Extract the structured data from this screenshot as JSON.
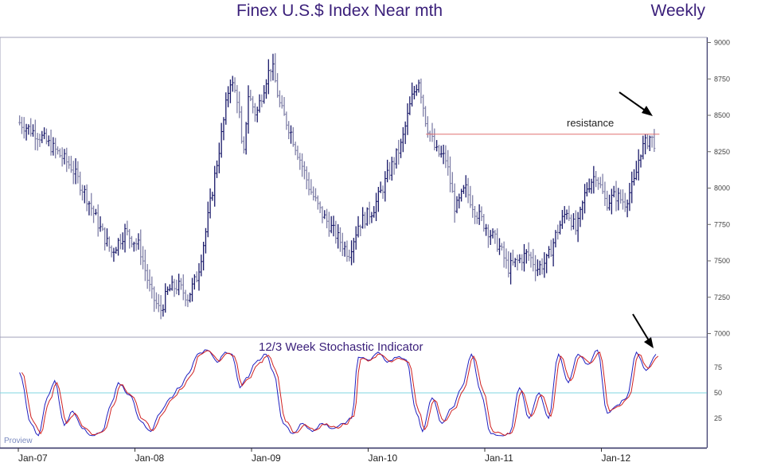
{
  "chart_data": [
    {
      "type": "ohlc",
      "title": "Finex U.S.$ Index Near mth",
      "period": "Weekly",
      "ylim": [
        6980,
        9020
      ],
      "yticks": [
        "9000",
        "8750",
        "8500",
        "8250",
        "8000",
        "7750",
        "7500",
        "7250",
        "7000"
      ],
      "x_labels": [
        "Jan-07",
        "Jan-08",
        "Jan-09",
        "Jan-10",
        "Jan-11",
        "Jan-12"
      ],
      "price_path": [
        [
          "2007-01-05",
          8450
        ],
        [
          "2007-03-15",
          8350
        ],
        [
          "2007-05-01",
          8250
        ],
        [
          "2007-06-15",
          8150
        ],
        [
          "2007-08-01",
          7950
        ],
        [
          "2007-09-15",
          7720
        ],
        [
          "2007-10-20",
          7560
        ],
        [
          "2007-12-01",
          7700
        ],
        [
          "2008-01-15",
          7600
        ],
        [
          "2008-02-20",
          7280
        ],
        [
          "2008-03-20",
          7150
        ],
        [
          "2008-04-15",
          7300
        ],
        [
          "2008-05-15",
          7330
        ],
        [
          "2008-06-15",
          7250
        ],
        [
          "2008-07-15",
          7400
        ],
        [
          "2008-08-10",
          7700
        ],
        [
          "2008-09-01",
          8000
        ],
        [
          "2008-10-01",
          8400
        ],
        [
          "2008-10-25",
          8750
        ],
        [
          "2008-11-20",
          8600
        ],
        [
          "2008-12-05",
          8150
        ],
        [
          "2008-12-20",
          8650
        ],
        [
          "2009-01-15",
          8500
        ],
        [
          "2009-02-15",
          8750
        ],
        [
          "2009-03-05",
          8850
        ],
        [
          "2009-04-01",
          8550
        ],
        [
          "2009-05-01",
          8400
        ],
        [
          "2009-06-01",
          8200
        ],
        [
          "2009-07-01",
          8000
        ],
        [
          "2009-08-01",
          7850
        ],
        [
          "2009-09-15",
          7700
        ],
        [
          "2009-11-01",
          7550
        ],
        [
          "2009-12-01",
          7750
        ],
        [
          "2010-01-15",
          7850
        ],
        [
          "2010-02-15",
          8000
        ],
        [
          "2010-03-15",
          8150
        ],
        [
          "2010-04-15",
          8300
        ],
        [
          "2010-05-15",
          8600
        ],
        [
          "2010-06-08",
          8750
        ],
        [
          "2010-07-01",
          8450
        ],
        [
          "2010-08-01",
          8250
        ],
        [
          "2010-09-01",
          8200
        ],
        [
          "2010-10-01",
          7850
        ],
        [
          "2010-11-01",
          8000
        ],
        [
          "2010-12-01",
          7850
        ],
        [
          "2011-01-15",
          7700
        ],
        [
          "2011-02-15",
          7600
        ],
        [
          "2011-03-15",
          7450
        ],
        [
          "2011-04-15",
          7500
        ],
        [
          "2011-05-15",
          7550
        ],
        [
          "2011-06-15",
          7450
        ],
        [
          "2011-07-15",
          7500
        ],
        [
          "2011-08-15",
          7700
        ],
        [
          "2011-09-15",
          7850
        ],
        [
          "2011-10-15",
          7700
        ],
        [
          "2011-11-15",
          8000
        ],
        [
          "2011-12-15",
          8100
        ],
        [
          "2012-01-15",
          7900
        ],
        [
          "2012-02-15",
          7950
        ],
        [
          "2012-03-15",
          7900
        ],
        [
          "2012-04-15",
          8050
        ],
        [
          "2012-05-01",
          8250
        ],
        [
          "2012-06-01",
          8350
        ],
        [
          "2012-06-20",
          8300
        ]
      ],
      "resistance": {
        "label": "resistance",
        "value": 8370,
        "from": "2010-07-01",
        "to": "2012-07-01"
      }
    },
    {
      "type": "line",
      "title": "12/3 Week Stochastic Indicator",
      "ylim": [
        0,
        100
      ],
      "yticks": [
        "75",
        "50",
        "25"
      ],
      "reference_line": 50,
      "series": [
        {
          "color": "#2020c0",
          "values": [
            [
              "2007-01-05",
              70
            ],
            [
              "2007-02-10",
              20
            ],
            [
              "2007-03-05",
              8
            ],
            [
              "2007-04-01",
              45
            ],
            [
              "2007-04-25",
              62
            ],
            [
              "2007-05-25",
              18
            ],
            [
              "2007-06-20",
              32
            ],
            [
              "2007-07-20",
              15
            ],
            [
              "2007-08-20",
              8
            ],
            [
              "2007-09-20",
              12
            ],
            [
              "2007-10-20",
              40
            ],
            [
              "2007-11-10",
              60
            ],
            [
              "2007-12-15",
              48
            ],
            [
              "2008-01-20",
              22
            ],
            [
              "2008-02-20",
              12
            ],
            [
              "2008-03-20",
              30
            ],
            [
              "2008-04-20",
              45
            ],
            [
              "2008-05-20",
              55
            ],
            [
              "2008-06-20",
              70
            ],
            [
              "2008-07-15",
              88
            ],
            [
              "2008-08-15",
              92
            ],
            [
              "2008-09-15",
              80
            ],
            [
              "2008-10-10",
              90
            ],
            [
              "2008-11-01",
              88
            ],
            [
              "2008-11-25",
              55
            ],
            [
              "2008-12-15",
              65
            ],
            [
              "2009-01-20",
              82
            ],
            [
              "2009-02-15",
              88
            ],
            [
              "2009-03-10",
              70
            ],
            [
              "2009-04-10",
              20
            ],
            [
              "2009-05-10",
              10
            ],
            [
              "2009-06-10",
              20
            ],
            [
              "2009-07-10",
              12
            ],
            [
              "2009-08-10",
              20
            ],
            [
              "2009-09-15",
              15
            ],
            [
              "2009-10-15",
              20
            ],
            [
              "2009-11-10",
              25
            ],
            [
              "2009-12-01",
              85
            ],
            [
              "2010-01-01",
              82
            ],
            [
              "2010-02-01",
              90
            ],
            [
              "2010-03-01",
              80
            ],
            [
              "2010-04-01",
              85
            ],
            [
              "2010-05-01",
              82
            ],
            [
              "2010-06-01",
              30
            ],
            [
              "2010-06-20",
              12
            ],
            [
              "2010-07-20",
              45
            ],
            [
              "2010-08-20",
              20
            ],
            [
              "2010-09-20",
              35
            ],
            [
              "2010-10-20",
              55
            ],
            [
              "2010-11-20",
              88
            ],
            [
              "2010-12-20",
              50
            ],
            [
              "2011-01-20",
              10
            ],
            [
              "2011-02-20",
              8
            ],
            [
              "2011-03-20",
              10
            ],
            [
              "2011-04-20",
              55
            ],
            [
              "2011-05-20",
              25
            ],
            [
              "2011-06-20",
              50
            ],
            [
              "2011-07-20",
              25
            ],
            [
              "2011-08-20",
              88
            ],
            [
              "2011-09-20",
              60
            ],
            [
              "2011-10-20",
              88
            ],
            [
              "2011-11-20",
              78
            ],
            [
              "2011-12-20",
              92
            ],
            [
              "2012-01-20",
              30
            ],
            [
              "2012-02-20",
              38
            ],
            [
              "2012-03-20",
              45
            ],
            [
              "2012-04-20",
              90
            ],
            [
              "2012-05-20",
              72
            ],
            [
              "2012-06-20",
              88
            ]
          ]
        },
        {
          "color": "#d02020",
          "values": [
            [
              "2007-01-12",
              70
            ],
            [
              "2007-02-17",
              22
            ],
            [
              "2007-03-12",
              10
            ],
            [
              "2007-04-08",
              42
            ],
            [
              "2007-05-02",
              60
            ],
            [
              "2007-06-01",
              20
            ],
            [
              "2007-06-27",
              30
            ],
            [
              "2007-07-27",
              16
            ],
            [
              "2007-08-27",
              9
            ],
            [
              "2007-09-27",
              13
            ],
            [
              "2007-10-27",
              38
            ],
            [
              "2007-11-17",
              58
            ],
            [
              "2007-12-22",
              47
            ],
            [
              "2008-01-27",
              24
            ],
            [
              "2008-02-27",
              13
            ],
            [
              "2008-03-27",
              29
            ],
            [
              "2008-04-27",
              44
            ],
            [
              "2008-05-27",
              54
            ],
            [
              "2008-06-27",
              68
            ],
            [
              "2008-07-22",
              87
            ],
            [
              "2008-08-22",
              91
            ],
            [
              "2008-09-22",
              81
            ],
            [
              "2008-10-17",
              89
            ],
            [
              "2008-11-08",
              86
            ],
            [
              "2008-12-02",
              57
            ],
            [
              "2008-12-22",
              64
            ],
            [
              "2009-01-27",
              80
            ],
            [
              "2009-02-22",
              87
            ],
            [
              "2009-03-17",
              72
            ],
            [
              "2009-04-17",
              22
            ],
            [
              "2009-05-17",
              11
            ],
            [
              "2009-06-17",
              19
            ],
            [
              "2009-07-17",
              13
            ],
            [
              "2009-08-17",
              19
            ],
            [
              "2009-09-22",
              16
            ],
            [
              "2009-10-22",
              19
            ],
            [
              "2009-11-17",
              27
            ],
            [
              "2009-12-08",
              83
            ],
            [
              "2010-01-08",
              82
            ],
            [
              "2010-02-08",
              88
            ],
            [
              "2010-03-08",
              81
            ],
            [
              "2010-04-08",
              84
            ],
            [
              "2010-05-08",
              80
            ],
            [
              "2010-06-08",
              32
            ],
            [
              "2010-06-27",
              14
            ],
            [
              "2010-07-27",
              43
            ],
            [
              "2010-08-27",
              22
            ],
            [
              "2010-09-27",
              34
            ],
            [
              "2010-10-27",
              53
            ],
            [
              "2010-11-27",
              86
            ],
            [
              "2010-12-27",
              52
            ],
            [
              "2011-01-27",
              12
            ],
            [
              "2011-02-27",
              9
            ],
            [
              "2011-03-27",
              11
            ],
            [
              "2011-04-27",
              52
            ],
            [
              "2011-05-27",
              27
            ],
            [
              "2011-06-27",
              48
            ],
            [
              "2011-07-27",
              27
            ],
            [
              "2011-08-27",
              86
            ],
            [
              "2011-09-27",
              62
            ],
            [
              "2011-10-27",
              86
            ],
            [
              "2011-11-27",
              79
            ],
            [
              "2011-12-27",
              90
            ],
            [
              "2012-01-27",
              32
            ],
            [
              "2012-02-27",
              37
            ],
            [
              "2012-03-27",
              46
            ],
            [
              "2012-04-27",
              88
            ],
            [
              "2012-05-27",
              74
            ],
            [
              "2012-06-27",
              86
            ]
          ]
        }
      ]
    }
  ],
  "footer": {
    "source_label": "Proview"
  }
}
